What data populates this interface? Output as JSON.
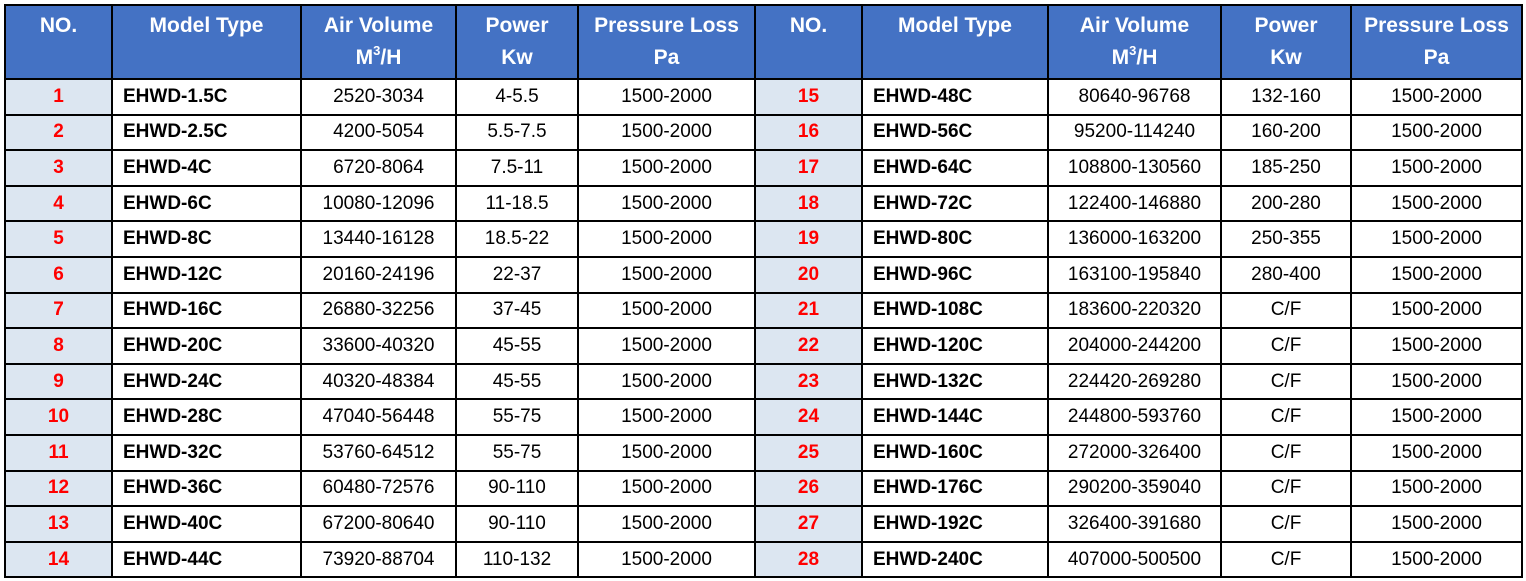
{
  "colors": {
    "header_bg": "#4472c4",
    "header_text": "#ffffff",
    "no_bg": "#dce6f1",
    "no_text": "#ff0000",
    "border": "#000000"
  },
  "headers": {
    "no": "NO.",
    "model": "Model Type",
    "air_line1": "Air Volume",
    "air_line2_base": "M",
    "air_line2_sup": "3",
    "air_line2_rest": "/H",
    "power_line1": "Power",
    "power_line2": "Kw",
    "pressure_line1": "Pressure Loss",
    "pressure_line2": "Pa"
  },
  "left_rows": [
    {
      "no": "1",
      "model": "EHWD-1.5C",
      "air": "2520-3034",
      "power": "4-5.5",
      "pressure": "1500-2000"
    },
    {
      "no": "2",
      "model": "EHWD-2.5C",
      "air": "4200-5054",
      "power": "5.5-7.5",
      "pressure": "1500-2000"
    },
    {
      "no": "3",
      "model": "EHWD-4C",
      "air": "6720-8064",
      "power": "7.5-11",
      "pressure": "1500-2000"
    },
    {
      "no": "4",
      "model": "EHWD-6C",
      "air": "10080-12096",
      "power": "11-18.5",
      "pressure": "1500-2000"
    },
    {
      "no": "5",
      "model": "EHWD-8C",
      "air": "13440-16128",
      "power": "18.5-22",
      "pressure": "1500-2000"
    },
    {
      "no": "6",
      "model": "EHWD-12C",
      "air": "20160-24196",
      "power": "22-37",
      "pressure": "1500-2000"
    },
    {
      "no": "7",
      "model": "EHWD-16C",
      "air": "26880-32256",
      "power": "37-45",
      "pressure": "1500-2000"
    },
    {
      "no": "8",
      "model": "EHWD-20C",
      "air": "33600-40320",
      "power": "45-55",
      "pressure": "1500-2000"
    },
    {
      "no": "9",
      "model": "EHWD-24C",
      "air": "40320-48384",
      "power": "45-55",
      "pressure": "1500-2000"
    },
    {
      "no": "10",
      "model": "EHWD-28C",
      "air": "47040-56448",
      "power": "55-75",
      "pressure": "1500-2000"
    },
    {
      "no": "11",
      "model": "EHWD-32C",
      "air": "53760-64512",
      "power": "55-75",
      "pressure": "1500-2000"
    },
    {
      "no": "12",
      "model": "EHWD-36C",
      "air": "60480-72576",
      "power": "90-110",
      "pressure": "1500-2000"
    },
    {
      "no": "13",
      "model": "EHWD-40C",
      "air": "67200-80640",
      "power": "90-110",
      "pressure": "1500-2000"
    },
    {
      "no": "14",
      "model": "EHWD-44C",
      "air": "73920-88704",
      "power": "110-132",
      "pressure": "1500-2000"
    }
  ],
  "right_rows": [
    {
      "no": "15",
      "model": "EHWD-48C",
      "air": "80640-96768",
      "power": "132-160",
      "pressure": "1500-2000"
    },
    {
      "no": "16",
      "model": "EHWD-56C",
      "air": "95200-114240",
      "power": "160-200",
      "pressure": "1500-2000"
    },
    {
      "no": "17",
      "model": "EHWD-64C",
      "air": "108800-130560",
      "power": "185-250",
      "pressure": "1500-2000"
    },
    {
      "no": "18",
      "model": "EHWD-72C",
      "air": "122400-146880",
      "power": "200-280",
      "pressure": "1500-2000"
    },
    {
      "no": "19",
      "model": "EHWD-80C",
      "air": "136000-163200",
      "power": "250-355",
      "pressure": "1500-2000"
    },
    {
      "no": "20",
      "model": "EHWD-96C",
      "air": "163100-195840",
      "power": "280-400",
      "pressure": "1500-2000"
    },
    {
      "no": "21",
      "model": "EHWD-108C",
      "air": "183600-220320",
      "power": "C/F",
      "pressure": "1500-2000"
    },
    {
      "no": "22",
      "model": "EHWD-120C",
      "air": "204000-244200",
      "power": "C/F",
      "pressure": "1500-2000"
    },
    {
      "no": "23",
      "model": "EHWD-132C",
      "air": "224420-269280",
      "power": "C/F",
      "pressure": "1500-2000"
    },
    {
      "no": "24",
      "model": "EHWD-144C",
      "air": "244800-593760",
      "power": "C/F",
      "pressure": "1500-2000"
    },
    {
      "no": "25",
      "model": "EHWD-160C",
      "air": "272000-326400",
      "power": "C/F",
      "pressure": "1500-2000"
    },
    {
      "no": "26",
      "model": "EHWD-176C",
      "air": "290200-359040",
      "power": "C/F",
      "pressure": "1500-2000"
    },
    {
      "no": "27",
      "model": "EHWD-192C",
      "air": "326400-391680",
      "power": "C/F",
      "pressure": "1500-2000"
    },
    {
      "no": "28",
      "model": "EHWD-240C",
      "air": "407000-500500",
      "power": "C/F",
      "pressure": "1500-2000"
    }
  ]
}
